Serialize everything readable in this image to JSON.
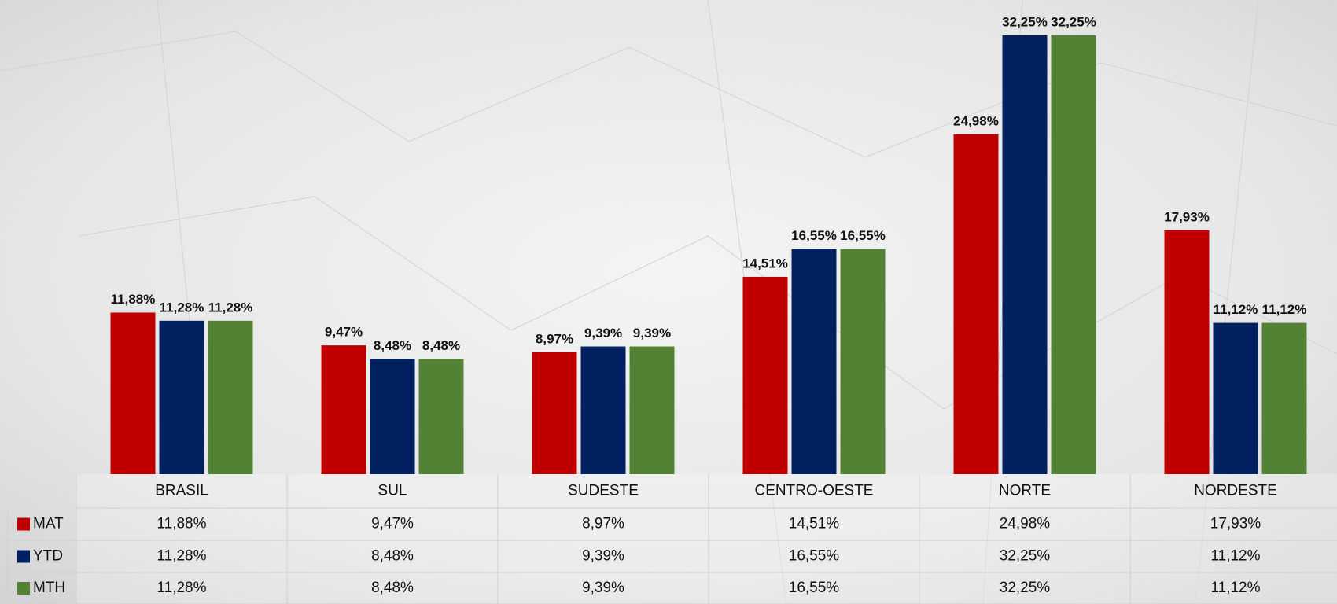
{
  "chart_data": {
    "type": "bar",
    "categories": [
      "BRASIL",
      "SUL",
      "SUDESTE",
      "CENTRO-OESTE",
      "NORTE",
      "NORDESTE"
    ],
    "series": [
      {
        "name": "MAT",
        "color": "#c00000",
        "values": [
          11.88,
          9.47,
          8.97,
          14.51,
          24.98,
          17.93
        ],
        "value_labels": [
          "11,88%",
          "9,47%",
          "8,97%",
          "14,51%",
          "24,98%",
          "17,93%"
        ]
      },
      {
        "name": "YTD",
        "color": "#002060",
        "values": [
          11.28,
          8.48,
          9.39,
          16.55,
          32.25,
          11.12
        ],
        "value_labels": [
          "11,28%",
          "8,48%",
          "9,39%",
          "16,55%",
          "32,25%",
          "11,12%"
        ]
      },
      {
        "name": "MTH",
        "color": "#548235",
        "values": [
          11.28,
          8.48,
          9.39,
          16.55,
          32.25,
          11.12
        ],
        "value_labels": [
          "11,28%",
          "8,48%",
          "9,39%",
          "16,55%",
          "32,25%",
          "11,12%"
        ]
      }
    ]
  }
}
